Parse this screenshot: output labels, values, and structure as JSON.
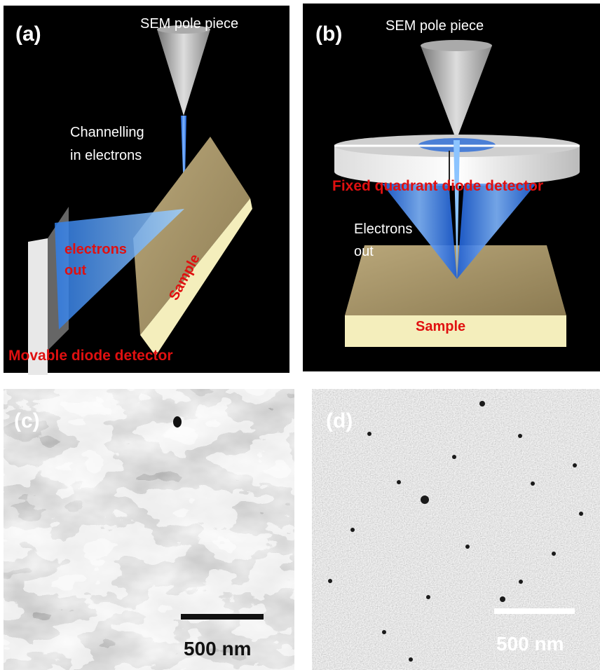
{
  "panels": [
    {
      "label": "(a)",
      "pole_piece": "SEM pole piece",
      "beam_label": [
        "Channelling",
        "in electrons"
      ],
      "out_label": [
        "electrons",
        "out"
      ],
      "sample": "Sample",
      "detector": "Movable diode detector"
    },
    {
      "label": "(b)",
      "pole_piece": "SEM pole piece",
      "detector": "Fixed quadrant diode detector",
      "out_label": [
        "Electrons",
        "out"
      ],
      "sample": "Sample"
    },
    {
      "label": "(c)",
      "scale_bar": "500 nm"
    },
    {
      "label": "(d)",
      "scale_bar": "500 nm"
    }
  ]
}
